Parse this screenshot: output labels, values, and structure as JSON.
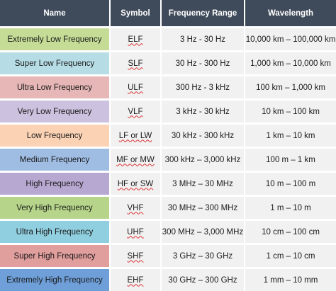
{
  "table": {
    "headers": [
      "Name",
      "Symbol",
      "Frequency Range",
      "Wavelength"
    ],
    "rows": [
      {
        "name": "Extremely Low Frequency",
        "symbol": "ELF",
        "range": "3 Hz - 30 Hz",
        "wavelength": "10,000 km – 100,000 km",
        "color": "#c4dc96"
      },
      {
        "name": "Super Low Frequency",
        "symbol": "SLF",
        "range": "30 Hz - 300 Hz",
        "wavelength": "1,000 km – 10,000 km",
        "color": "#b6dde6"
      },
      {
        "name": "Ultra Low Frequency",
        "symbol": "ULF",
        "range": "300 Hz - 3 kHz",
        "wavelength": "100 km – 1,000 km",
        "color": "#e6b7b6"
      },
      {
        "name": "Very Low Frequency",
        "symbol": "VLF",
        "range": "3 kHz - 30 kHz",
        "wavelength": "10 km – 100 km",
        "color": "#ccc1de"
      },
      {
        "name": "Low Frequency",
        "symbol": "LF or LW",
        "range": "30 kHz - 300 kHz",
        "wavelength": "1 km – 10 km",
        "color": "#fbd3b4"
      },
      {
        "name": "Medium Frequency",
        "symbol": "MF or MW",
        "range": "300 kHz – 3,000 kHz",
        "wavelength": "100 m – 1 km",
        "color": "#9fbde3"
      },
      {
        "name": "High Frequency",
        "symbol": "HF or SW",
        "range": "3 MHz – 30 MHz",
        "wavelength": "10 m – 100 m",
        "color": "#b7a8d1"
      },
      {
        "name": "Very High Frequency",
        "symbol": "VHF",
        "range": "30 MHz – 300 MHz",
        "wavelength": "1 m – 10 m",
        "color": "#b6d58a"
      },
      {
        "name": "Ultra High Frequency",
        "symbol": "UHF",
        "range": "300 MHz – 3,000 MHz",
        "wavelength": "10 cm – 100 cm",
        "color": "#90cfdf"
      },
      {
        "name": "Super High Frequency",
        "symbol": "SHF",
        "range": "3 GHz – 30 GHz",
        "wavelength": "1 cm – 10 cm",
        "color": "#e09e9d"
      },
      {
        "name": "Extremely High Frequency",
        "symbol": "EHF",
        "range": "30 GHz – 300 GHz",
        "wavelength": "1 mm – 10 mm",
        "color": "#6f9fd8"
      }
    ]
  }
}
